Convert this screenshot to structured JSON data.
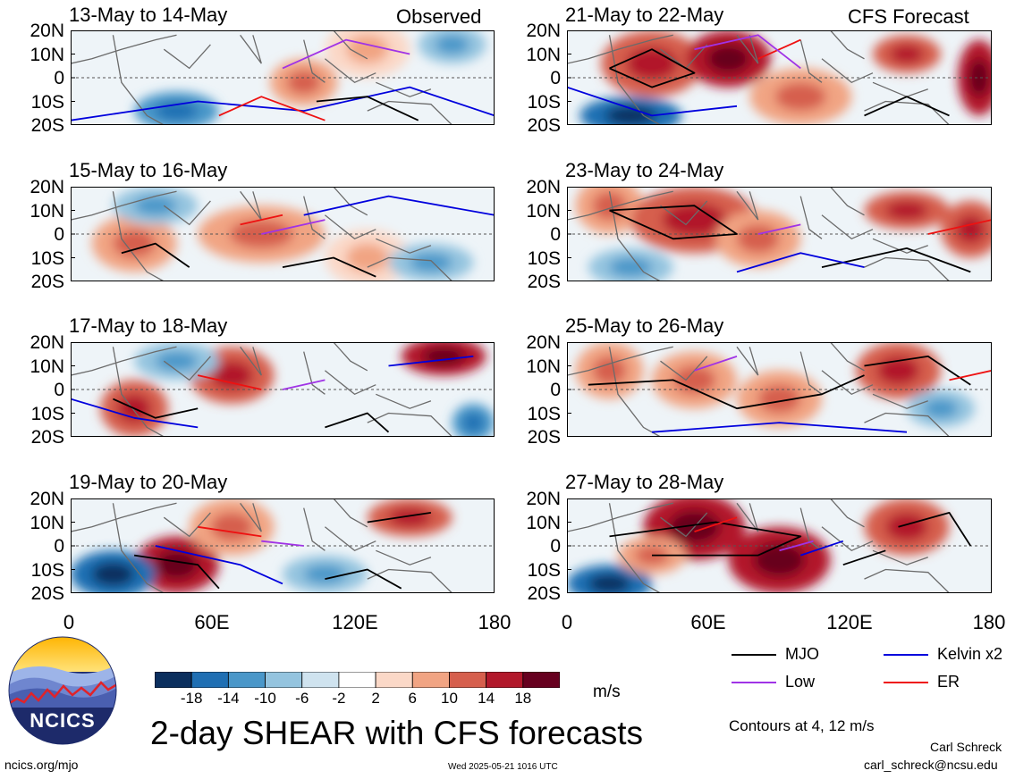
{
  "chart_data": {
    "type": "heatmap",
    "title": "2-day SHEAR with CFS forecasts",
    "units": "m/s",
    "contour_note": "Contours at 4, 12 m/s",
    "left_header": "Observed",
    "right_header": "CFS Forecast",
    "panels": [
      {
        "label": "13-May to 14-May",
        "source": "Observed",
        "blobs": [
          [
            0.55,
            0.55,
            0.08,
            0.25,
            8
          ],
          [
            0.7,
            0.2,
            0.1,
            0.3,
            6
          ],
          [
            0.25,
            0.85,
            0.1,
            0.2,
            -10
          ],
          [
            0.9,
            0.15,
            0.08,
            0.2,
            -6
          ]
        ],
        "contours": [
          {
            "type": "Kelvin x2",
            "pts": [
              [
                0,
                0.95
              ],
              [
                0.3,
                0.75
              ],
              [
                0.55,
                0.85
              ],
              [
                0.8,
                0.6
              ],
              [
                1,
                0.9
              ]
            ]
          },
          {
            "type": "Low",
            "pts": [
              [
                0.5,
                0.4
              ],
              [
                0.65,
                0.1
              ],
              [
                0.8,
                0.25
              ]
            ]
          },
          {
            "type": "ER",
            "pts": [
              [
                0.35,
                0.9
              ],
              [
                0.45,
                0.7
              ],
              [
                0.6,
                0.95
              ]
            ]
          },
          {
            "type": "MJO",
            "pts": [
              [
                0.58,
                0.75
              ],
              [
                0.7,
                0.7
              ],
              [
                0.82,
                0.95
              ]
            ]
          }
        ]
      },
      {
        "label": "21-May to 22-May",
        "source": "CFS Forecast",
        "blobs": [
          [
            0.2,
            0.35,
            0.12,
            0.35,
            12
          ],
          [
            0.38,
            0.3,
            0.1,
            0.3,
            16
          ],
          [
            0.55,
            0.7,
            0.12,
            0.3,
            10
          ],
          [
            0.8,
            0.25,
            0.08,
            0.2,
            14
          ],
          [
            0.97,
            0.5,
            0.05,
            0.4,
            16
          ],
          [
            0.15,
            0.9,
            0.12,
            0.2,
            -14
          ]
        ],
        "contours": [
          {
            "type": "MJO",
            "pts": [
              [
                0.1,
                0.4
              ],
              [
                0.2,
                0.2
              ],
              [
                0.3,
                0.45
              ],
              [
                0.2,
                0.6
              ],
              [
                0.1,
                0.4
              ]
            ]
          },
          {
            "type": "MJO",
            "pts": [
              [
                0.7,
                0.9
              ],
              [
                0.8,
                0.7
              ],
              [
                0.9,
                0.9
              ]
            ]
          },
          {
            "type": "Kelvin x2",
            "pts": [
              [
                0,
                0.6
              ],
              [
                0.2,
                0.9
              ],
              [
                0.4,
                0.8
              ]
            ]
          },
          {
            "type": "ER",
            "pts": [
              [
                0.45,
                0.3
              ],
              [
                0.55,
                0.1
              ]
            ]
          },
          {
            "type": "Low",
            "pts": [
              [
                0.3,
                0.2
              ],
              [
                0.45,
                0.05
              ],
              [
                0.55,
                0.4
              ]
            ]
          }
        ]
      },
      {
        "label": "15-May to 16-May",
        "source": "Observed",
        "blobs": [
          [
            0.15,
            0.6,
            0.1,
            0.3,
            8
          ],
          [
            0.45,
            0.5,
            0.15,
            0.3,
            8
          ],
          [
            0.7,
            0.75,
            0.1,
            0.3,
            6
          ],
          [
            0.2,
            0.2,
            0.1,
            0.2,
            -6
          ],
          [
            0.85,
            0.8,
            0.1,
            0.2,
            -8
          ]
        ],
        "contours": [
          {
            "type": "MJO",
            "pts": [
              [
                0.12,
                0.7
              ],
              [
                0.2,
                0.6
              ],
              [
                0.28,
                0.85
              ]
            ]
          },
          {
            "type": "MJO",
            "pts": [
              [
                0.5,
                0.85
              ],
              [
                0.62,
                0.75
              ],
              [
                0.72,
                0.95
              ]
            ]
          },
          {
            "type": "Kelvin x2",
            "pts": [
              [
                0.55,
                0.3
              ],
              [
                0.75,
                0.1
              ],
              [
                1,
                0.3
              ]
            ]
          },
          {
            "type": "Low",
            "pts": [
              [
                0.45,
                0.5
              ],
              [
                0.6,
                0.35
              ]
            ]
          },
          {
            "type": "ER",
            "pts": [
              [
                0.4,
                0.4
              ],
              [
                0.5,
                0.3
              ]
            ]
          }
        ]
      },
      {
        "label": "23-May to 24-May",
        "source": "CFS Forecast",
        "blobs": [
          [
            0.1,
            0.2,
            0.08,
            0.3,
            8
          ],
          [
            0.3,
            0.35,
            0.15,
            0.35,
            12
          ],
          [
            0.45,
            0.55,
            0.1,
            0.3,
            10
          ],
          [
            0.8,
            0.25,
            0.1,
            0.2,
            14
          ],
          [
            0.95,
            0.45,
            0.07,
            0.3,
            14
          ],
          [
            0.15,
            0.85,
            0.1,
            0.2,
            -8
          ]
        ],
        "contours": [
          {
            "type": "MJO",
            "pts": [
              [
                0.1,
                0.25
              ],
              [
                0.3,
                0.2
              ],
              [
                0.4,
                0.5
              ],
              [
                0.25,
                0.55
              ],
              [
                0.1,
                0.25
              ]
            ]
          },
          {
            "type": "MJO",
            "pts": [
              [
                0.6,
                0.85
              ],
              [
                0.8,
                0.65
              ],
              [
                0.95,
                0.9
              ]
            ]
          },
          {
            "type": "Kelvin x2",
            "pts": [
              [
                0.4,
                0.9
              ],
              [
                0.55,
                0.7
              ],
              [
                0.7,
                0.85
              ]
            ]
          },
          {
            "type": "ER",
            "pts": [
              [
                0.85,
                0.5
              ],
              [
                1,
                0.35
              ]
            ]
          },
          {
            "type": "Low",
            "pts": [
              [
                0.45,
                0.5
              ],
              [
                0.55,
                0.4
              ]
            ]
          }
        ]
      },
      {
        "label": "17-May to 18-May",
        "source": "Observed",
        "blobs": [
          [
            0.15,
            0.7,
            0.08,
            0.3,
            14
          ],
          [
            0.38,
            0.35,
            0.1,
            0.3,
            12
          ],
          [
            0.88,
            0.15,
            0.1,
            0.2,
            16
          ],
          [
            0.25,
            0.2,
            0.1,
            0.2,
            -8
          ],
          [
            0.95,
            0.85,
            0.05,
            0.2,
            -10
          ]
        ],
        "contours": [
          {
            "type": "MJO",
            "pts": [
              [
                0.1,
                0.6
              ],
              [
                0.2,
                0.8
              ],
              [
                0.3,
                0.7
              ]
            ]
          },
          {
            "type": "MJO",
            "pts": [
              [
                0.6,
                0.9
              ],
              [
                0.7,
                0.75
              ],
              [
                0.75,
                0.95
              ]
            ]
          },
          {
            "type": "Kelvin x2",
            "pts": [
              [
                0,
                0.6
              ],
              [
                0.15,
                0.8
              ],
              [
                0.3,
                0.9
              ]
            ]
          },
          {
            "type": "Kelvin x2",
            "pts": [
              [
                0.75,
                0.25
              ],
              [
                0.95,
                0.15
              ]
            ]
          },
          {
            "type": "ER",
            "pts": [
              [
                0.3,
                0.35
              ],
              [
                0.45,
                0.5
              ]
            ]
          },
          {
            "type": "Low",
            "pts": [
              [
                0.5,
                0.5
              ],
              [
                0.6,
                0.4
              ]
            ]
          }
        ]
      },
      {
        "label": "25-May to 26-May",
        "source": "CFS Forecast",
        "blobs": [
          [
            0.1,
            0.3,
            0.08,
            0.3,
            8
          ],
          [
            0.3,
            0.4,
            0.1,
            0.3,
            8
          ],
          [
            0.5,
            0.6,
            0.1,
            0.3,
            8
          ],
          [
            0.78,
            0.3,
            0.1,
            0.3,
            12
          ],
          [
            0.88,
            0.7,
            0.08,
            0.2,
            -6
          ]
        ],
        "contours": [
          {
            "type": "MJO",
            "pts": [
              [
                0.05,
                0.45
              ],
              [
                0.25,
                0.4
              ],
              [
                0.4,
                0.7
              ],
              [
                0.6,
                0.55
              ],
              [
                0.7,
                0.35
              ]
            ]
          },
          {
            "type": "MJO",
            "pts": [
              [
                0.7,
                0.25
              ],
              [
                0.85,
                0.15
              ],
              [
                0.95,
                0.45
              ]
            ]
          },
          {
            "type": "Kelvin x2",
            "pts": [
              [
                0.2,
                0.95
              ],
              [
                0.5,
                0.85
              ],
              [
                0.8,
                0.95
              ]
            ]
          },
          {
            "type": "Low",
            "pts": [
              [
                0.3,
                0.3
              ],
              [
                0.4,
                0.15
              ]
            ]
          },
          {
            "type": "ER",
            "pts": [
              [
                0.9,
                0.4
              ],
              [
                1,
                0.3
              ]
            ]
          }
        ]
      },
      {
        "label": "19-May to 20-May",
        "source": "Observed",
        "blobs": [
          [
            0.25,
            0.7,
            0.1,
            0.3,
            16
          ],
          [
            0.38,
            0.3,
            0.1,
            0.3,
            10
          ],
          [
            0.8,
            0.2,
            0.1,
            0.2,
            14
          ],
          [
            0.1,
            0.8,
            0.1,
            0.25,
            -14
          ],
          [
            0.6,
            0.8,
            0.1,
            0.2,
            -6
          ]
        ],
        "contours": [
          {
            "type": "MJO",
            "pts": [
              [
                0.15,
                0.6
              ],
              [
                0.3,
                0.7
              ],
              [
                0.35,
                0.95
              ]
            ]
          },
          {
            "type": "MJO",
            "pts": [
              [
                0.6,
                0.85
              ],
              [
                0.7,
                0.75
              ],
              [
                0.78,
                0.95
              ]
            ]
          },
          {
            "type": "MJO",
            "pts": [
              [
                0.7,
                0.25
              ],
              [
                0.85,
                0.15
              ]
            ]
          },
          {
            "type": "Kelvin x2",
            "pts": [
              [
                0.2,
                0.5
              ],
              [
                0.4,
                0.7
              ],
              [
                0.5,
                0.9
              ]
            ]
          },
          {
            "type": "ER",
            "pts": [
              [
                0.3,
                0.3
              ],
              [
                0.45,
                0.4
              ]
            ]
          },
          {
            "type": "Low",
            "pts": [
              [
                0.45,
                0.45
              ],
              [
                0.55,
                0.5
              ]
            ]
          }
        ]
      },
      {
        "label": "27-May to 28-May",
        "source": "CFS Forecast",
        "blobs": [
          [
            0.3,
            0.3,
            0.12,
            0.35,
            16
          ],
          [
            0.5,
            0.65,
            0.12,
            0.35,
            16
          ],
          [
            0.8,
            0.3,
            0.1,
            0.3,
            14
          ],
          [
            0.1,
            0.9,
            0.1,
            0.2,
            -16
          ],
          [
            0.2,
            0.6,
            0.08,
            0.2,
            8
          ]
        ],
        "contours": [
          {
            "type": "MJO",
            "pts": [
              [
                0.1,
                0.4
              ],
              [
                0.35,
                0.25
              ],
              [
                0.55,
                0.4
              ],
              [
                0.45,
                0.6
              ],
              [
                0.2,
                0.6
              ]
            ]
          },
          {
            "type": "MJO",
            "pts": [
              [
                0.65,
                0.7
              ],
              [
                0.75,
                0.55
              ]
            ]
          },
          {
            "type": "MJO",
            "pts": [
              [
                0.78,
                0.3
              ],
              [
                0.9,
                0.15
              ],
              [
                0.95,
                0.5
              ]
            ]
          },
          {
            "type": "Kelvin x2",
            "pts": [
              [
                0.55,
                0.6
              ],
              [
                0.65,
                0.45
              ]
            ]
          },
          {
            "type": "Low",
            "pts": [
              [
                0.5,
                0.55
              ],
              [
                0.58,
                0.45
              ]
            ]
          },
          {
            "type": "ER",
            "pts": [
              [
                0.3,
                0.35
              ],
              [
                0.4,
                0.2
              ]
            ]
          }
        ]
      }
    ],
    "xaxis": {
      "ticks": [
        "0",
        "60E",
        "120E",
        "180"
      ],
      "range": [
        0,
        180
      ]
    },
    "yaxis": {
      "ticks": [
        "20N",
        "10N",
        "0",
        "10S",
        "20S"
      ],
      "range": [
        -20,
        20
      ]
    },
    "colorbar": {
      "ticks": [
        "-18",
        "-14",
        "-10",
        "-6",
        "-2",
        "2",
        "6",
        "10",
        "14",
        "18"
      ],
      "colors": [
        "#0b2f5e",
        "#1f6fb3",
        "#4a97c9",
        "#94c4df",
        "#cfe3ef",
        "#ffffff",
        "#fbd8c7",
        "#f1a483",
        "#d65f4d",
        "#b2182b",
        "#67001f"
      ]
    },
    "legend": [
      {
        "name": "MJO",
        "color": "#000000"
      },
      {
        "name": "Kelvin x2",
        "color": "#0000dd"
      },
      {
        "name": "Low",
        "color": "#a033e6"
      },
      {
        "name": "ER",
        "color": "#ee1111"
      }
    ]
  },
  "footer": {
    "logo_text": "NCICS",
    "left": "ncics.org/mjo",
    "center": "Wed 2025-05-21 1016 UTC",
    "author": "Carl Schreck",
    "email": "carl_schreck@ncsu.edu"
  }
}
